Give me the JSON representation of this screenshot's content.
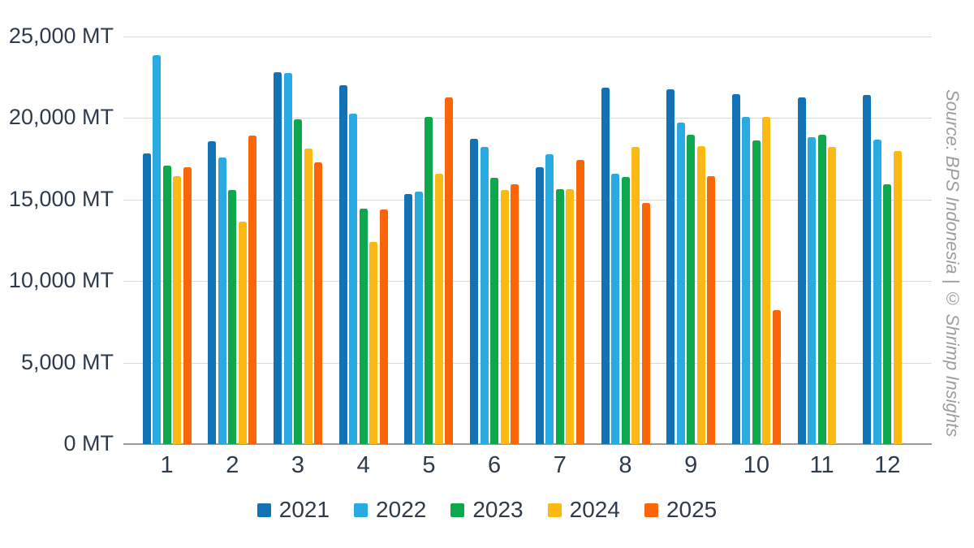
{
  "chart_data": {
    "type": "bar",
    "unit": "MT",
    "categories": [
      "1",
      "2",
      "3",
      "4",
      "5",
      "6",
      "7",
      "8",
      "9",
      "10",
      "11",
      "12"
    ],
    "series": [
      {
        "name": "2021",
        "color": "#1272b6",
        "values": [
          17850,
          18600,
          22800,
          22000,
          15350,
          18750,
          17000,
          21850,
          21750,
          21450,
          21250,
          21400
        ]
      },
      {
        "name": "2022",
        "color": "#29abe2",
        "values": [
          23850,
          17600,
          22750,
          20250,
          15500,
          18250,
          17800,
          16600,
          19700,
          20050,
          18800,
          18700
        ]
      },
      {
        "name": "2023",
        "color": "#0da84e",
        "values": [
          17100,
          15600,
          19900,
          14450,
          20050,
          16350,
          15650,
          16400,
          18950,
          18650,
          18950,
          15950
        ]
      },
      {
        "name": "2024",
        "color": "#fcb813",
        "values": [
          16450,
          13650,
          18150,
          12400,
          16600,
          15600,
          15650,
          18250,
          18300,
          20050,
          18250,
          18000
        ]
      },
      {
        "name": "2025",
        "color": "#f96507",
        "values": [
          17000,
          18900,
          17300,
          14400,
          21250,
          15950,
          17450,
          14800,
          16450,
          8200,
          null,
          null
        ]
      }
    ],
    "y_axis": {
      "min": 0,
      "max": 25000,
      "tick_step": 5000,
      "tick_labels": [
        "0 MT",
        "5,000 MT",
        "10,000 MT",
        "15,000 MT",
        "20,000 MT",
        "25,000 MT"
      ]
    },
    "grid": true,
    "legend_position": "bottom",
    "title": ""
  },
  "source_note": "Source: BPS Indonesia | © Shrimp Insights",
  "colors": {
    "axis_text": "#2e3b4c",
    "gridline": "#d9d9d9",
    "baseline": "#9a9a9a",
    "source_text": "#9e9e9e",
    "background": "#ffffff"
  }
}
